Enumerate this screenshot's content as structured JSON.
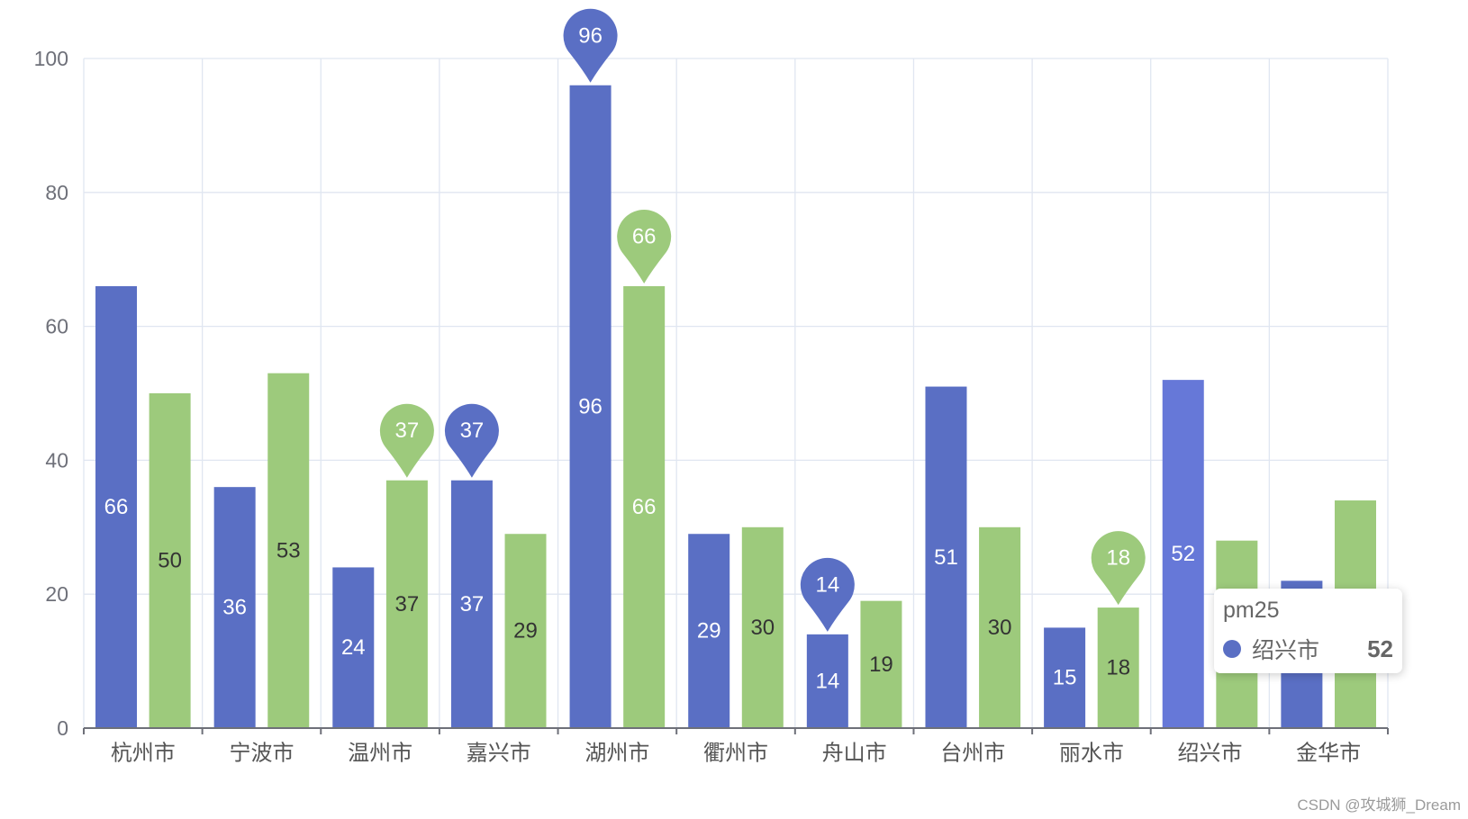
{
  "chart_data": {
    "type": "bar",
    "categories": [
      "杭州市",
      "宁波市",
      "温州市",
      "嘉兴市",
      "湖州市",
      "衢州市",
      "舟山市",
      "台州市",
      "丽水市",
      "绍兴市",
      "金华市"
    ],
    "series": [
      {
        "name": "pm25",
        "color": "#5a6fc4",
        "label_color": "#ffffff",
        "values": [
          66,
          36,
          24,
          37,
          96,
          29,
          14,
          51,
          15,
          52,
          22
        ],
        "mark_points": [
          null,
          null,
          null,
          37,
          96,
          null,
          14,
          null,
          null,
          null,
          null
        ]
      },
      {
        "color": "#9dca7c",
        "label_color": "#333333",
        "label_colors": [
          "#333333",
          "#333333",
          "#333333",
          "#333333",
          "#ffffff",
          "#333333",
          "#333333",
          "#333333",
          "#333333",
          "#333333",
          "#333333"
        ],
        "values": [
          50,
          53,
          37,
          29,
          66,
          30,
          19,
          30,
          18,
          28,
          34
        ],
        "mark_points": [
          null,
          null,
          37,
          null,
          66,
          null,
          null,
          null,
          18,
          null,
          null
        ]
      }
    ],
    "ylim": [
      0,
      100
    ],
    "yticks": [
      0,
      20,
      40,
      60,
      80,
      100
    ],
    "grid": true,
    "colors": {
      "grid_line": "#e0e6f1",
      "axis_line": "#6e7079",
      "y_tick_label": "#6e7079",
      "x_tick_label": "#555555"
    }
  },
  "tooltip": {
    "series_index": 0,
    "category_index": 9,
    "highlight_color": "#6678d8"
  },
  "watermark": {
    "text": "CSDN @攻城狮_Dream"
  }
}
